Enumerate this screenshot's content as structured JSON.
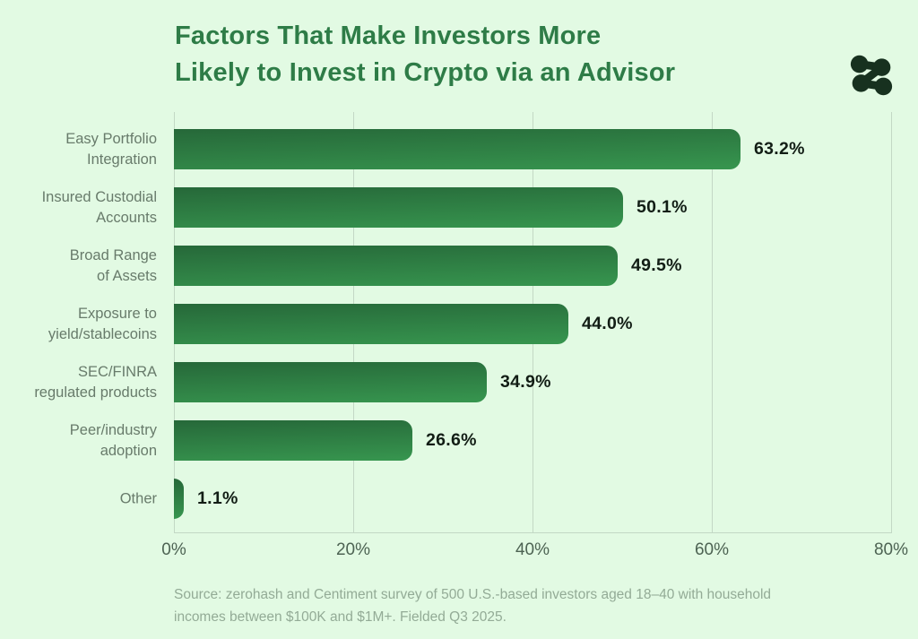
{
  "title": {
    "lines": [
      "Factors That Make Investors More",
      "Likely to Invest in Crypto via an Advisor"
    ]
  },
  "logo": {
    "name": "zerohash-logo"
  },
  "chart_data": {
    "type": "bar",
    "orientation": "horizontal",
    "title": "Factors That Make Investors More Likely to Invest in Crypto via an Advisor",
    "categories": [
      "Easy Portfolio Integration",
      "Insured Custodial Accounts",
      "Broad Range of Assets",
      "Exposure to yield/stablecoins",
      "SEC/FINRA regulated products",
      "Peer/industry adoption",
      "Other"
    ],
    "category_lines": [
      [
        "Easy Portfolio",
        "Integration"
      ],
      [
        "Insured Custodial",
        "Accounts"
      ],
      [
        "Broad Range",
        "of Assets"
      ],
      [
        "Exposure to",
        "yield/stablecoins"
      ],
      [
        "SEC/FINRA",
        "regulated products"
      ],
      [
        "Peer/industry",
        "adoption"
      ],
      [
        "Other"
      ]
    ],
    "values": [
      63.2,
      50.1,
      49.5,
      44.0,
      34.9,
      26.6,
      1.1
    ],
    "value_labels": [
      "63.2%",
      "50.1%",
      "49.5%",
      "44.0%",
      "34.9%",
      "26.6%",
      "1.1%"
    ],
    "x_ticks": [
      {
        "label": "0%",
        "value": 0
      },
      {
        "label": "20%",
        "value": 20
      },
      {
        "label": "40%",
        "value": 40
      },
      {
        "label": "60%",
        "value": 60
      },
      {
        "label": "80%",
        "value": 80
      }
    ],
    "xlim": [
      0,
      80
    ],
    "grid": true,
    "legend": false
  },
  "source": {
    "lines": [
      "Source: zerohash and Centiment survey of 500 U.S.-based investors aged 18–40 with household",
      "incomes between $100K and $1M+. Fielded Q3 2025."
    ]
  },
  "colors": {
    "background": "#e2fae3",
    "title_text": "#2e7c47",
    "bar_gradient_top": "#266839",
    "bar_gradient_bottom": "#37964f",
    "value_text": "#121d15",
    "category_text": "#687b6b",
    "tick_text": "#4d6353",
    "gridline": "#c3d8c5",
    "source_text": "#93ab96",
    "logo": "#17311f"
  }
}
